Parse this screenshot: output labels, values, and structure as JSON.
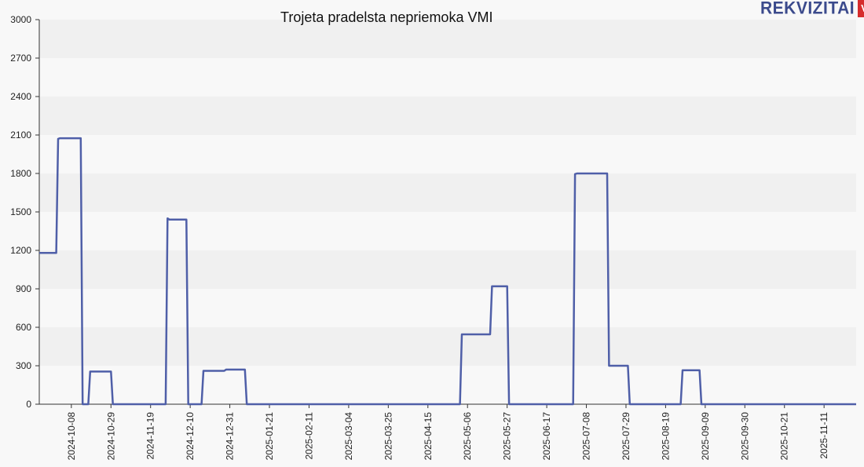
{
  "brand": {
    "word": "REKVIZITAI",
    "badge": "VŽ"
  },
  "chart_data": {
    "type": "line",
    "title": "Trojeta pradelsta nepriemoka VMI",
    "xlabel": "",
    "ylabel": "",
    "ylim": [
      0,
      3000
    ],
    "yticks": [
      0,
      300,
      600,
      900,
      1200,
      1500,
      1800,
      2100,
      2400,
      2700,
      3000
    ],
    "xlim": [
      "2024-09-21",
      "2025-11-28"
    ],
    "xticks": [
      "2024-10-08",
      "2024-10-29",
      "2024-11-19",
      "2024-12-10",
      "2024-12-31",
      "2025-01-21",
      "2025-02-11",
      "2025-03-04",
      "2025-03-25",
      "2025-04-15",
      "2025-05-06",
      "2025-05-27",
      "2025-06-17",
      "2025-07-08",
      "2025-07-29",
      "2025-08-19",
      "2025-09-09",
      "2025-09-30",
      "2025-10-21",
      "2025-11-11"
    ],
    "grid": "horizontal bands",
    "colors": {
      "line": "#4f5fa8",
      "band": "#f0f0f0",
      "axis": "#333333"
    },
    "series": [
      {
        "points": [
          [
            "2024-09-21",
            1180
          ],
          [
            "2024-09-30",
            1180
          ],
          [
            "2024-10-01",
            2070
          ],
          [
            "2024-10-02",
            2075
          ],
          [
            "2024-10-13",
            2075
          ],
          [
            "2024-10-14",
            0
          ],
          [
            "2024-10-17",
            0
          ],
          [
            "2024-10-18",
            255
          ],
          [
            "2024-10-29",
            255
          ],
          [
            "2024-10-30",
            0
          ],
          [
            "2024-11-27",
            0
          ],
          [
            "2024-11-28",
            1450
          ],
          [
            "2024-11-29",
            1440
          ],
          [
            "2024-12-08",
            1440
          ],
          [
            "2024-12-09",
            0
          ],
          [
            "2024-12-16",
            0
          ],
          [
            "2024-12-17",
            260
          ],
          [
            "2024-12-28",
            260
          ],
          [
            "2024-12-29",
            270
          ],
          [
            "2025-01-08",
            270
          ],
          [
            "2025-01-09",
            0
          ],
          [
            "2025-05-02",
            0
          ],
          [
            "2025-05-03",
            545
          ],
          [
            "2025-05-18",
            545
          ],
          [
            "2025-05-19",
            920
          ],
          [
            "2025-05-27",
            920
          ],
          [
            "2025-05-28",
            0
          ],
          [
            "2025-07-01",
            0
          ],
          [
            "2025-07-02",
            1795
          ],
          [
            "2025-07-03",
            1800
          ],
          [
            "2025-07-19",
            1800
          ],
          [
            "2025-07-20",
            300
          ],
          [
            "2025-07-30",
            300
          ],
          [
            "2025-07-31",
            0
          ],
          [
            "2025-08-27",
            0
          ],
          [
            "2025-08-28",
            265
          ],
          [
            "2025-09-06",
            265
          ],
          [
            "2025-09-07",
            0
          ],
          [
            "2025-11-28",
            0
          ]
        ]
      }
    ]
  }
}
